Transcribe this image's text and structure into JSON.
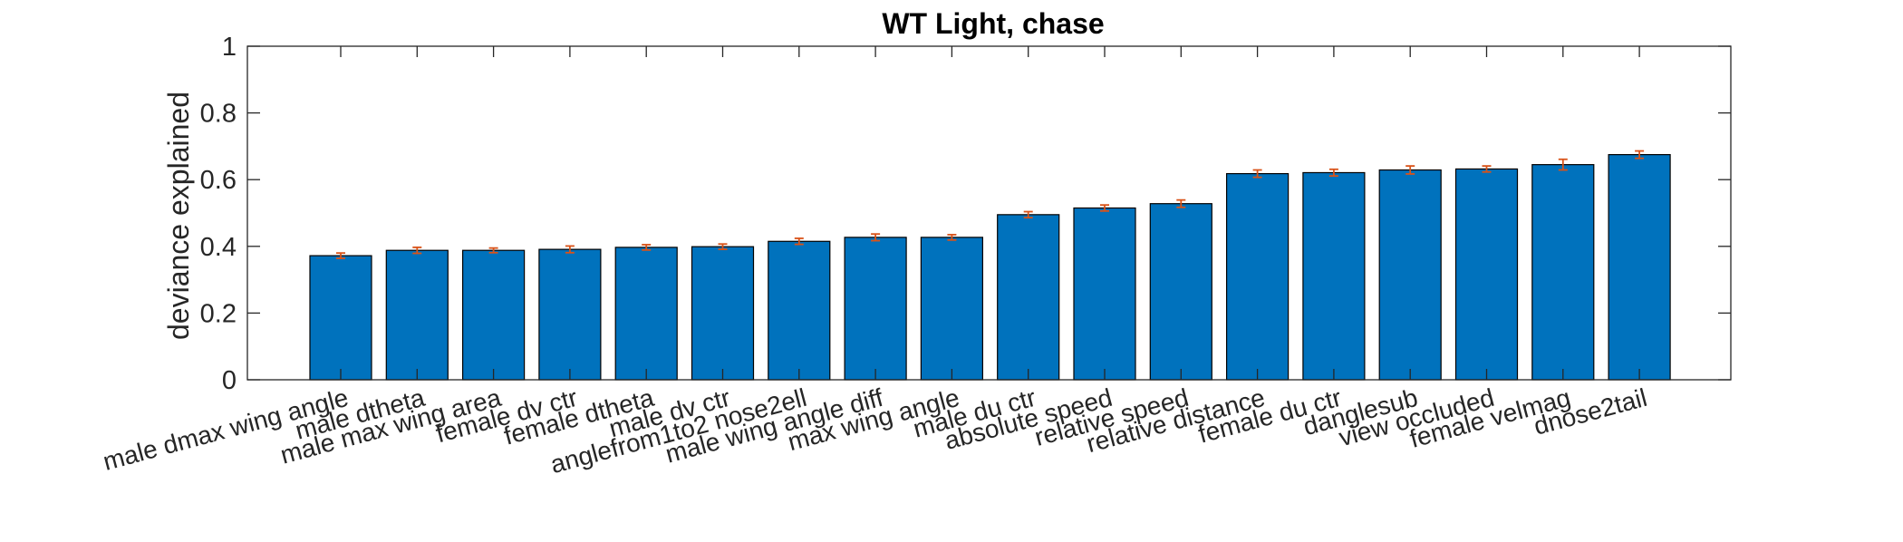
{
  "chart_data": {
    "type": "bar",
    "title": "WT Light, chase",
    "xlabel": "",
    "ylabel": "deviance explained",
    "ylim": [
      0,
      1
    ],
    "yticks": [
      0,
      0.2,
      0.4,
      0.6,
      0.8,
      1
    ],
    "ytick_labels": [
      "0",
      "0.2",
      "0.4",
      "0.6",
      "0.8",
      "1"
    ],
    "grid": false,
    "categories": [
      "male dmax wing angle",
      "male dtheta",
      "male max wing area",
      "female dv ctr",
      "female dtheta",
      "male dv ctr",
      "anglefrom1to2 nose2ell",
      "male wing angle diff",
      "max wing angle",
      "male du ctr",
      "absolute speed",
      "relative speed",
      "relative distance",
      "female du ctr",
      "danglesub",
      "view occluded",
      "female velmag",
      "dnose2tail"
    ],
    "values": [
      0.372,
      0.388,
      0.388,
      0.391,
      0.397,
      0.399,
      0.415,
      0.427,
      0.427,
      0.495,
      0.515,
      0.528,
      0.618,
      0.621,
      0.629,
      0.632,
      0.645,
      0.675
    ],
    "errors": [
      0.008,
      0.009,
      0.007,
      0.01,
      0.008,
      0.008,
      0.009,
      0.01,
      0.008,
      0.009,
      0.009,
      0.011,
      0.011,
      0.01,
      0.012,
      0.009,
      0.016,
      0.011
    ],
    "colors": {
      "bar": "#0072bd",
      "error": "#d95319",
      "axis": "#262626"
    }
  }
}
